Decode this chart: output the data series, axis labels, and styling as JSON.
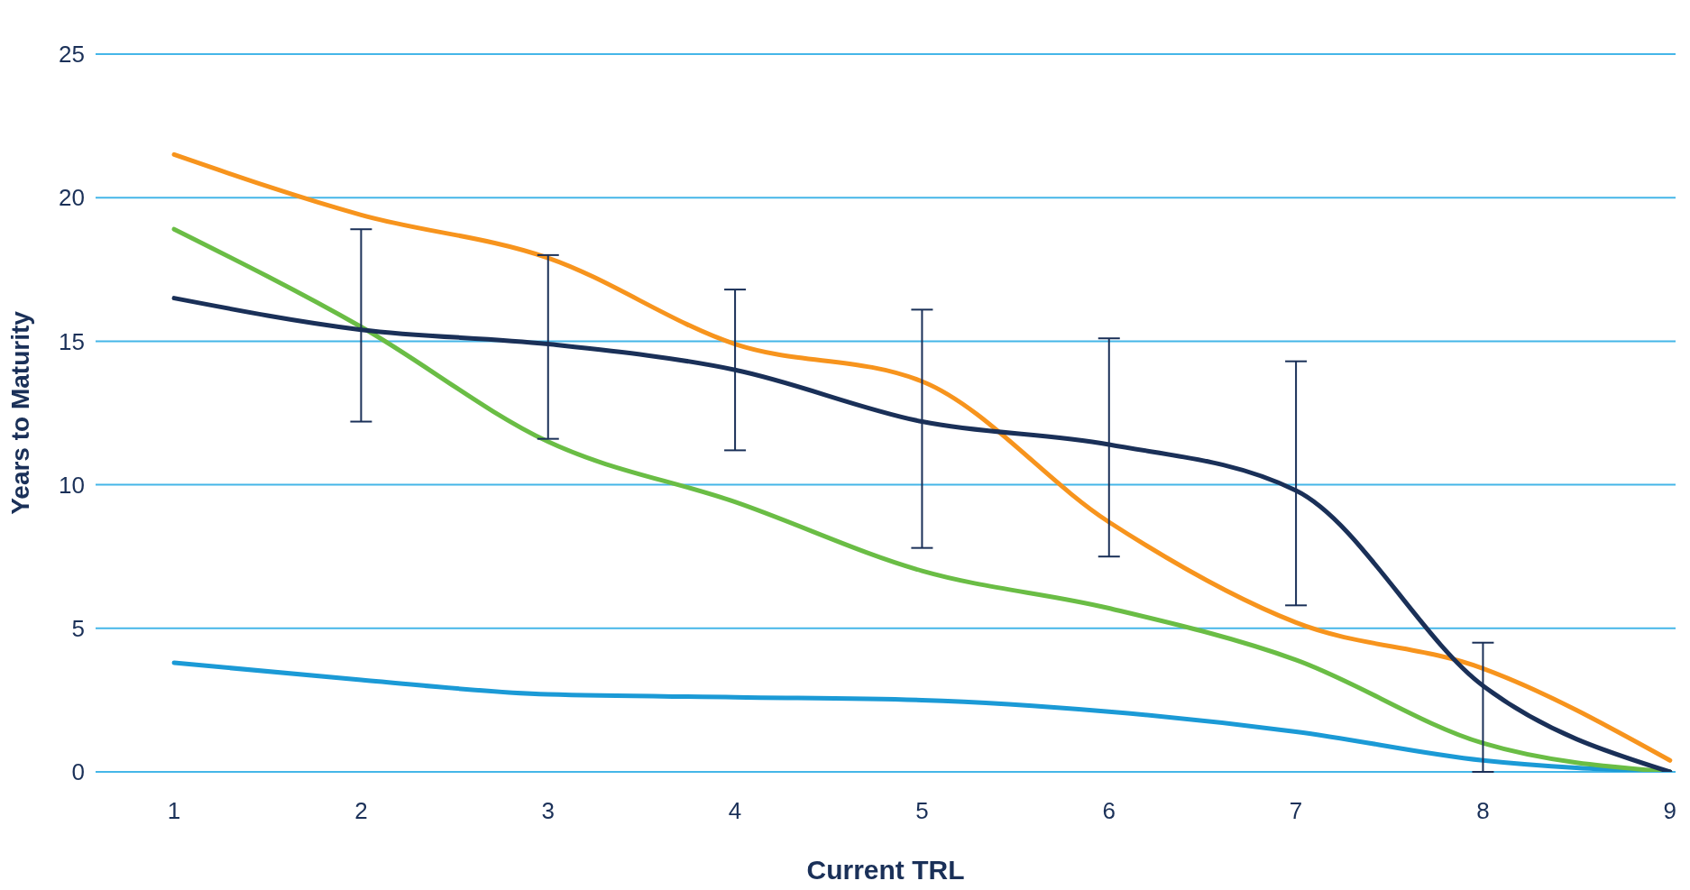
{
  "chart_data": {
    "type": "line",
    "xlabel": "Current TRL",
    "ylabel": "Years to Maturity",
    "x": [
      1,
      2,
      3,
      4,
      5,
      6,
      7,
      8,
      9
    ],
    "series": [
      {
        "color": "#1b9ad6",
        "values": [
          3.8,
          3.2,
          2.7,
          2.6,
          2.5,
          2.1,
          1.4,
          0.4,
          0
        ]
      },
      {
        "color": "#6abd45",
        "values": [
          18.9,
          15.5,
          11.5,
          9.4,
          7.0,
          5.7,
          3.9,
          1.0,
          0
        ]
      },
      {
        "color": "#f7941d",
        "values": [
          21.5,
          19.4,
          17.9,
          14.9,
          13.6,
          8.7,
          5.2,
          3.6,
          0.4
        ]
      },
      {
        "color": "#1a3058",
        "values": [
          16.5,
          15.4,
          14.9,
          14.0,
          12.2,
          11.4,
          9.8,
          3.0,
          0
        ],
        "errors": [
          null,
          [
            12.2,
            18.9
          ],
          [
            11.6,
            18.0
          ],
          [
            11.2,
            16.8
          ],
          [
            7.8,
            16.1
          ],
          [
            7.5,
            15.1
          ],
          [
            5.8,
            14.3
          ],
          [
            0,
            4.5
          ],
          null
        ]
      }
    ],
    "xlim": [
      0.58,
      9.03
    ],
    "xticks": [
      1,
      2,
      3,
      4,
      5,
      6,
      7,
      8,
      9
    ],
    "ylim": [
      0,
      25
    ],
    "yticks": [
      0,
      5,
      10,
      15,
      20,
      25
    ],
    "grid": "y",
    "legend": false,
    "marker": "none",
    "line_style": "solid"
  }
}
